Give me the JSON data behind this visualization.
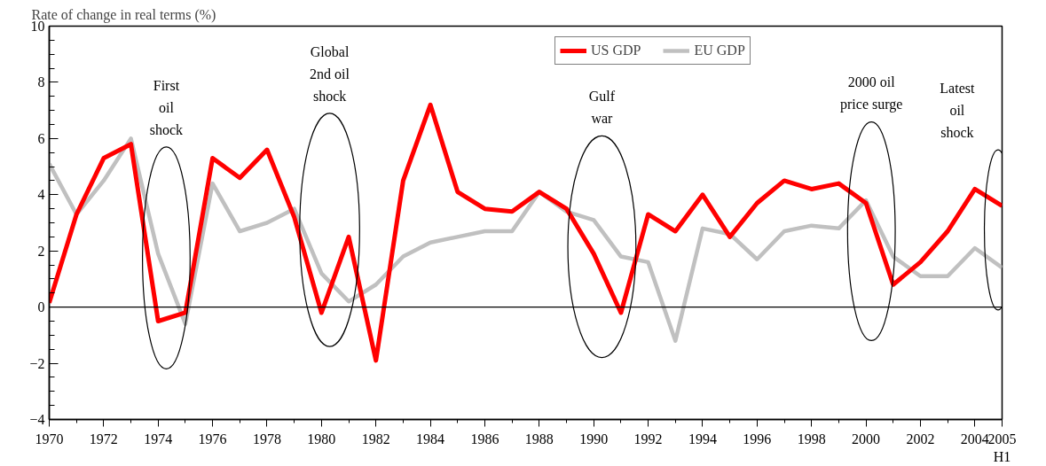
{
  "chart_data": {
    "type": "line",
    "ylabel": "Rate of change in real terms (%)",
    "x": [
      1970,
      1971,
      1972,
      1973,
      1974,
      1975,
      1976,
      1977,
      1978,
      1979,
      1980,
      1981,
      1982,
      1983,
      1984,
      1985,
      1986,
      1987,
      1988,
      1989,
      1990,
      1991,
      1992,
      1993,
      1994,
      1995,
      1996,
      1997,
      1998,
      1999,
      2000,
      2001,
      2002,
      2003,
      2004,
      2005
    ],
    "series": [
      {
        "name": "US GDP",
        "color": "#ff0000",
        "values": [
          0.15,
          3.3,
          5.3,
          5.8,
          -0.5,
          -0.2,
          5.3,
          4.6,
          5.6,
          3.2,
          -0.2,
          2.5,
          -1.9,
          4.5,
          7.2,
          4.1,
          3.5,
          3.4,
          4.1,
          3.5,
          1.9,
          -0.2,
          3.3,
          2.7,
          4.0,
          2.5,
          3.7,
          4.5,
          4.2,
          4.4,
          3.7,
          0.8,
          1.6,
          2.7,
          4.2,
          3.6
        ]
      },
      {
        "name": "EU GDP",
        "color": "#c0c0c0",
        "values": [
          5.1,
          3.3,
          4.5,
          6.0,
          1.9,
          -0.6,
          4.4,
          2.7,
          3.0,
          3.5,
          1.2,
          0.2,
          0.8,
          1.8,
          2.3,
          2.5,
          2.7,
          2.7,
          4.1,
          3.4,
          3.1,
          1.8,
          1.6,
          -1.2,
          2.8,
          2.6,
          1.7,
          2.7,
          2.9,
          2.8,
          3.8,
          1.8,
          1.1,
          1.1,
          2.1,
          1.4
        ]
      }
    ],
    "xlim": [
      1970,
      2005
    ],
    "xticks": [
      1970,
      1972,
      1974,
      1976,
      1978,
      1980,
      1982,
      1984,
      1986,
      1988,
      1990,
      1992,
      1994,
      1996,
      1998,
      2000,
      2002,
      2004,
      {
        "value": 2005,
        "label": "2005\nH1"
      }
    ],
    "ylim": [
      -4,
      10
    ],
    "yticks": [
      -4,
      -2,
      0,
      2,
      4,
      6,
      8,
      10
    ],
    "ref_lines": [
      {
        "axis": "y",
        "value": 0,
        "label": null,
        "color": "#000000"
      }
    ],
    "annotations": [
      "First\noil\nshock",
      "Global\n2nd oil\nshock",
      "Gulf\nwar",
      "2000 oil\nprice surge",
      "Latest\noil\nshock"
    ],
    "legend": "top",
    "grid": false,
    "marker": "none",
    "line_style": "solid"
  }
}
